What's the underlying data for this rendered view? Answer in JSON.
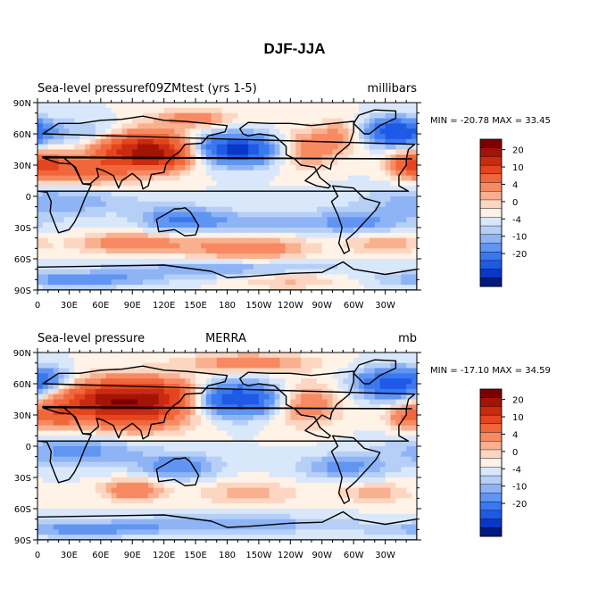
{
  "figure_title": "DJF-JJA",
  "colors": {
    "scale": [
      "#001a80",
      "#0a37c8",
      "#1f5ae6",
      "#3a78f0",
      "#6195f2",
      "#8fb4f5",
      "#b6cff6",
      "#d9e7fb",
      "#fff2e6",
      "#fdd6c2",
      "#f9b08f",
      "#f78a62",
      "#f0673b",
      "#e4441e",
      "#c92a10",
      "#a31306",
      "#7d0000"
    ],
    "coast": "#000000"
  },
  "chart_data": [
    {
      "type": "heatmap",
      "title_left": "Sea-level pressuref09ZMtest (yrs 1-5)",
      "title_center": "",
      "title_right": "millibars",
      "stats": "MIN = -20.78 MAX =  33.45",
      "xlim": [
        0,
        360
      ],
      "ylim": [
        -90,
        90
      ],
      "x_ticks": [
        "0",
        "30E",
        "60E",
        "90E",
        "120E",
        "150E",
        "180",
        "150W",
        "120W",
        "90W",
        "60W",
        "30W"
      ],
      "y_ticks": [
        "90N",
        "60N",
        "30N",
        "0",
        "30S",
        "60S",
        "90S"
      ],
      "colorbar_levels": [
        -25,
        -20,
        -15,
        -10,
        -6,
        -4,
        -2,
        0,
        2,
        4,
        6,
        10,
        15,
        20,
        25,
        30
      ],
      "colorbar_labels": [
        "20",
        "10",
        "4",
        "0",
        "-4",
        "-10",
        "-20"
      ],
      "blobs": [
        {
          "lon": 95,
          "lat": 45,
          "amp": 22,
          "slon": 30,
          "slat": 14
        },
        {
          "lon": 120,
          "lat": 40,
          "amp": 12,
          "slon": 22,
          "slat": 10
        },
        {
          "lon": 50,
          "lat": 25,
          "amp": 10,
          "slon": 25,
          "slat": 10
        },
        {
          "lon": 10,
          "lat": 30,
          "amp": 12,
          "slon": 14,
          "slat": 9
        },
        {
          "lon": 350,
          "lat": 30,
          "amp": 10,
          "slon": 14,
          "slat": 9
        },
        {
          "lon": 255,
          "lat": 45,
          "amp": 9,
          "slon": 22,
          "slat": 12
        },
        {
          "lon": 290,
          "lat": 60,
          "amp": 6,
          "slon": 18,
          "slat": 10
        },
        {
          "lon": 190,
          "lat": 45,
          "amp": -22,
          "slon": 28,
          "slat": 10
        },
        {
          "lon": 340,
          "lat": 62,
          "amp": -20,
          "slon": 22,
          "slat": 9
        },
        {
          "lon": 60,
          "lat": 60,
          "amp": -6,
          "slon": 30,
          "slat": 10
        },
        {
          "lon": 150,
          "lat": 75,
          "amp": 8,
          "slon": 25,
          "slat": 6
        },
        {
          "lon": 20,
          "lat": -5,
          "amp": -6,
          "slon": 50,
          "slat": 10
        },
        {
          "lon": 135,
          "lat": -22,
          "amp": -10,
          "slon": 25,
          "slat": 8
        },
        {
          "lon": 300,
          "lat": -25,
          "amp": -7,
          "slon": 40,
          "slat": 8
        },
        {
          "lon": 200,
          "lat": -25,
          "amp": -5,
          "slon": 35,
          "slat": 8
        },
        {
          "lon": 90,
          "lat": -45,
          "amp": 9,
          "slon": 35,
          "slat": 7
        },
        {
          "lon": 200,
          "lat": -50,
          "amp": 9,
          "slon": 40,
          "slat": 8
        },
        {
          "lon": 330,
          "lat": -45,
          "amp": 6,
          "slon": 25,
          "slat": 7
        },
        {
          "lon": 180,
          "lat": -70,
          "amp": -6,
          "slon": 80,
          "slat": 6
        },
        {
          "lon": 40,
          "lat": -80,
          "amp": -8,
          "slon": 50,
          "slat": 5
        },
        {
          "lon": 240,
          "lat": -80,
          "amp": 5,
          "slon": 40,
          "slat": 6
        }
      ]
    },
    {
      "type": "heatmap",
      "title_left": "Sea-level pressure",
      "title_center": "MERRA",
      "title_right": "mb",
      "stats": "MIN = -17.10 MAX =  34.59",
      "xlim": [
        0,
        360
      ],
      "ylim": [
        -90,
        90
      ],
      "x_ticks": [
        "0",
        "30E",
        "60E",
        "90E",
        "120E",
        "150E",
        "180",
        "150W",
        "120W",
        "90W",
        "60W",
        "30W"
      ],
      "y_ticks": [
        "90N",
        "60N",
        "30N",
        "0",
        "30S",
        "60S",
        "90S"
      ],
      "colorbar_levels": [
        -25,
        -20,
        -15,
        -10,
        -6,
        -4,
        -2,
        0,
        2,
        4,
        6,
        10,
        15,
        20,
        25,
        30
      ],
      "colorbar_labels": [
        "20",
        "10",
        "4",
        "0",
        "-4",
        "-10",
        "-20"
      ],
      "blobs": [
        {
          "lon": 95,
          "lat": 40,
          "amp": 22,
          "slon": 35,
          "slat": 16
        },
        {
          "lon": 60,
          "lat": 45,
          "amp": 14,
          "slon": 30,
          "slat": 12
        },
        {
          "lon": 130,
          "lat": 50,
          "amp": 8,
          "slon": 20,
          "slat": 10
        },
        {
          "lon": 20,
          "lat": 30,
          "amp": 10,
          "slon": 18,
          "slat": 10
        },
        {
          "lon": 350,
          "lat": 28,
          "amp": 8,
          "slon": 14,
          "slat": 8
        },
        {
          "lon": 255,
          "lat": 40,
          "amp": 9,
          "slon": 22,
          "slat": 14
        },
        {
          "lon": 200,
          "lat": 80,
          "amp": 9,
          "slon": 40,
          "slat": 6
        },
        {
          "lon": 190,
          "lat": 45,
          "amp": -20,
          "slon": 28,
          "slat": 11
        },
        {
          "lon": 335,
          "lat": 60,
          "amp": -18,
          "slon": 22,
          "slat": 10
        },
        {
          "lon": 10,
          "lat": 65,
          "amp": -8,
          "slon": 15,
          "slat": 8
        },
        {
          "lon": 40,
          "lat": -5,
          "amp": -7,
          "slon": 50,
          "slat": 10
        },
        {
          "lon": 135,
          "lat": -20,
          "amp": -9,
          "slon": 25,
          "slat": 8
        },
        {
          "lon": 290,
          "lat": -20,
          "amp": -7,
          "slon": 30,
          "slat": 8
        },
        {
          "lon": 90,
          "lat": -42,
          "amp": 10,
          "slon": 20,
          "slat": 7
        },
        {
          "lon": 200,
          "lat": -45,
          "amp": 5,
          "slon": 35,
          "slat": 8
        },
        {
          "lon": 320,
          "lat": -45,
          "amp": 5,
          "slon": 25,
          "slat": 7
        },
        {
          "lon": 180,
          "lat": -75,
          "amp": -6,
          "slon": 80,
          "slat": 6
        },
        {
          "lon": 40,
          "lat": -80,
          "amp": -7,
          "slon": 50,
          "slat": 5
        }
      ]
    }
  ]
}
